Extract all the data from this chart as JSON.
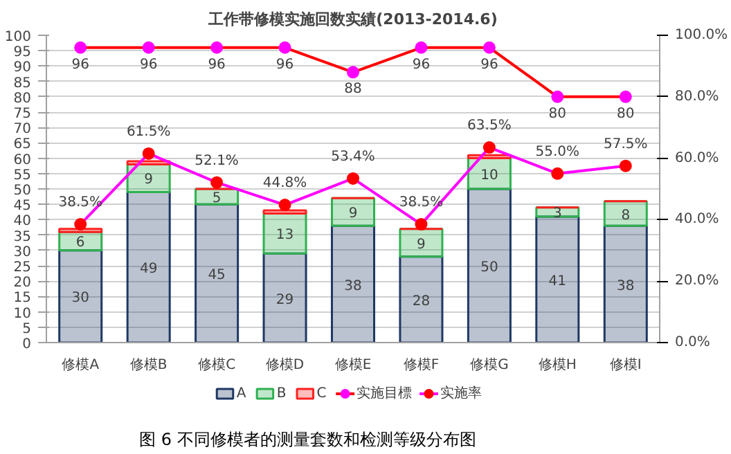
{
  "chart_data": {
    "type": "bar",
    "stacked": true,
    "title": "工作带修模实施回数实績(2013-2014.6)",
    "annotations": [
      "图 6 不同修模者的测量套数和检测等级分布图"
    ],
    "categories": [
      "修模A",
      "修模B",
      "修模C",
      "修模D",
      "修模E",
      "修模F",
      "修模G",
      "修模H",
      "修模I"
    ],
    "series": [
      {
        "name": "A",
        "color": "#1f3864",
        "values": [
          30,
          49,
          45,
          29,
          38,
          28,
          50,
          41,
          38
        ],
        "value_labels": [
          "30",
          "49",
          "45",
          "29",
          "38",
          "28",
          "50",
          "41",
          "38"
        ]
      },
      {
        "name": "B",
        "color": "#2fb050",
        "values": [
          6,
          9,
          5,
          13,
          9,
          9,
          10,
          3,
          8
        ],
        "value_labels": [
          "6",
          "9",
          "5",
          "13",
          "9",
          "9",
          "10",
          "3",
          "8"
        ]
      },
      {
        "name": "C",
        "color": "#ff2020",
        "values": [
          1,
          1,
          0,
          1,
          0,
          0,
          1,
          0,
          0
        ]
      },
      {
        "name": "实施目標",
        "type": "line",
        "marker": "circle",
        "color": "#ff0000",
        "colors": [
          "#ff00ff",
          "#ff00ff",
          "#ff00ff",
          "#ff00ff",
          "#ff00ff",
          "#ff00ff",
          "#ff00ff",
          "#ff00ff",
          "#ff00ff"
        ],
        "values": [
          96,
          96,
          96,
          96,
          88,
          96,
          96,
          80,
          80
        ],
        "value_labels": [
          "96",
          "96",
          "96",
          "96",
          "88",
          "96",
          "96",
          "80",
          "80"
        ]
      },
      {
        "name": "实施率",
        "type": "line",
        "axis": "y2",
        "marker": "circle",
        "color": "#ff00ff",
        "colors": [
          "#ff0000",
          "#ff0000",
          "#ff0000",
          "#ff0000",
          "#ff0000",
          "#ff0000",
          "#ff0000",
          "#ff0000",
          "#ff0000"
        ],
        "values": [
          38.5,
          61.5,
          52.1,
          44.8,
          53.4,
          38.5,
          63.5,
          55.0,
          57.5
        ],
        "value_labels": [
          "38.5%",
          "61.5%",
          "52.1%",
          "44.8%",
          "53.4%",
          "38.5%",
          "63.5%",
          "55.0%",
          "57.5%"
        ]
      }
    ],
    "ylim": [
      0,
      100
    ],
    "yticks": [
      0,
      5,
      10,
      15,
      20,
      25,
      30,
      35,
      40,
      45,
      50,
      55,
      60,
      65,
      70,
      75,
      80,
      85,
      90,
      95,
      100
    ],
    "y2lim": [
      0,
      100
    ],
    "y2ticks": [
      {
        "value": 0,
        "label": "0.0%"
      },
      {
        "value": 20,
        "label": "20.0%"
      },
      {
        "value": 40,
        "label": "40.0%"
      },
      {
        "value": 60,
        "label": "60.0%"
      },
      {
        "value": 80,
        "label": "80.0%"
      },
      {
        "value": 100,
        "label": "100.0%"
      }
    ],
    "grid": "y",
    "legend": "bottom"
  }
}
